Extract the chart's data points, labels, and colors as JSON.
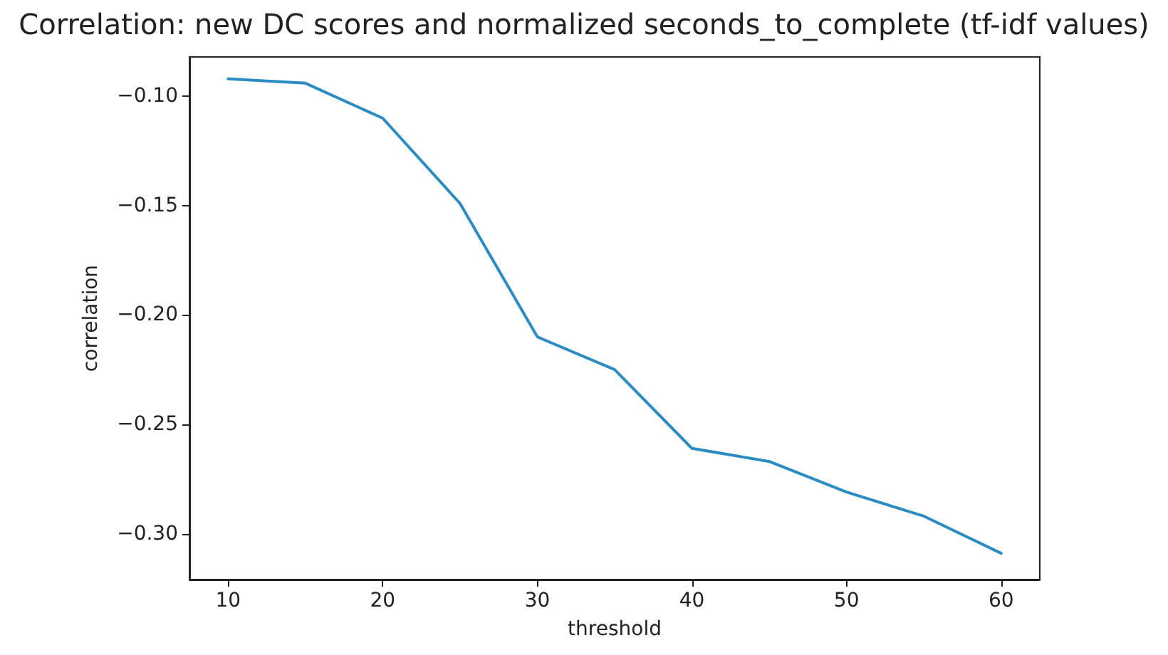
{
  "chart_data": {
    "type": "line",
    "title": "Correlation: new DC scores and normalized seconds_to_complete (tf-idf values)",
    "xlabel": "threshold",
    "ylabel": "correlation",
    "x": [
      10,
      15,
      20,
      25,
      30,
      35,
      40,
      45,
      50,
      55,
      60
    ],
    "series": [
      {
        "color": "#2b8cc4",
        "values": [
          -0.092,
          -0.094,
          -0.11,
          -0.149,
          -0.21,
          -0.225,
          -0.261,
          -0.267,
          -0.281,
          -0.292,
          -0.309
        ]
      }
    ],
    "xlim": [
      7.5,
      62.5
    ],
    "xticks": [
      10,
      20,
      30,
      40,
      50,
      60
    ],
    "ylim": [
      -0.321,
      -0.082
    ],
    "yticks": [
      {
        "value": -0.1,
        "label": "−0.10"
      },
      {
        "value": -0.15,
        "label": "−0.15"
      },
      {
        "value": -0.2,
        "label": "−0.20"
      },
      {
        "value": -0.25,
        "label": "−0.25"
      },
      {
        "value": -0.3,
        "label": "−0.30"
      }
    ],
    "grid": false,
    "marker": "none",
    "line_style": "solid"
  }
}
